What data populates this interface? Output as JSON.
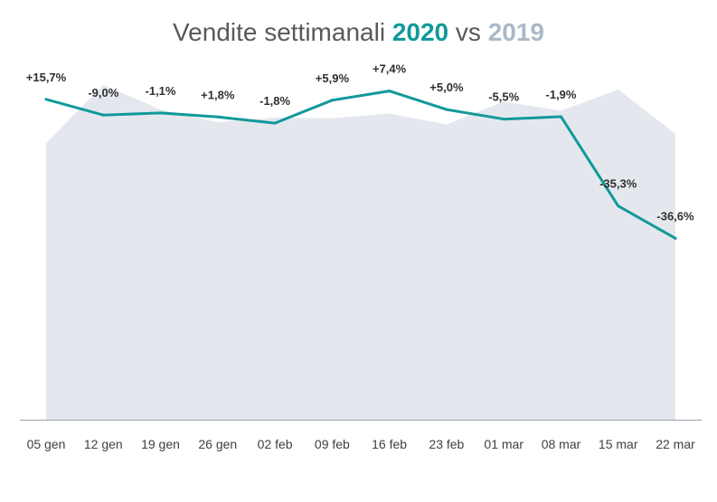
{
  "title": {
    "main": "Vendite settimanali",
    "year_current": "2020",
    "connector": "vs",
    "year_previous": "2019"
  },
  "colors": {
    "current_line": "#12999a",
    "previous_area": "#e4e8ee",
    "axis": "#9aa3ad",
    "label_text": "#2f2f2f",
    "tick_text": "#404040",
    "title_text": "#595959",
    "year_previous_text": "#a9b9c8"
  },
  "chart_data": {
    "type": "line",
    "categories": [
      "05 gen",
      "12 gen",
      "19 gen",
      "26 gen",
      "02 feb",
      "09 feb",
      "16 feb",
      "23 feb",
      "01 mar",
      "08 mar",
      "15 mar",
      "22 mar"
    ],
    "series": [
      {
        "name": "2020",
        "style": "line",
        "values": [
          103.7,
          98.6,
          99.3,
          98.0,
          96.0,
          103.4,
          106.4,
          100.4,
          97.3,
          98.1,
          69.2,
          58.7
        ],
        "labels": [
          "+15,7%",
          "-9,0%",
          "-1,1%",
          "+1,8%",
          "-1,8%",
          "+5,9%",
          "+7,4%",
          "+5,0%",
          "-5,5%",
          "-1,9%",
          "-35,3%",
          "-36,6%"
        ]
      },
      {
        "name": "2019",
        "style": "area",
        "values": [
          89.6,
          108.4,
          100.4,
          96.3,
          97.8,
          97.6,
          99.1,
          95.6,
          103.0,
          100.0,
          106.9,
          92.6
        ]
      }
    ],
    "ylim": [
      0,
      130
    ],
    "grid": false,
    "xlabel": "",
    "ylabel": ""
  }
}
